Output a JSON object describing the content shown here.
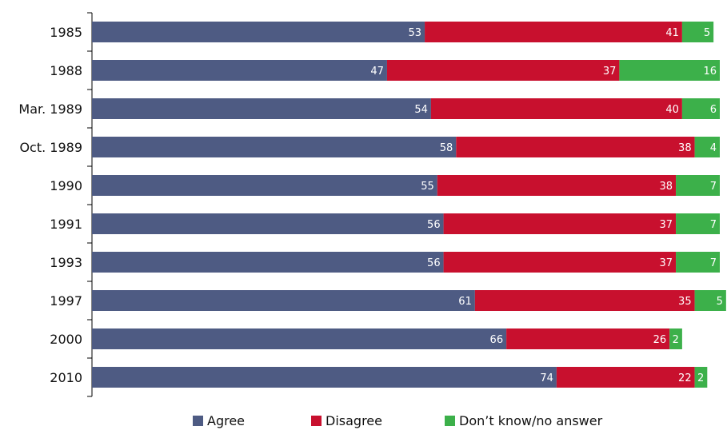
{
  "chart_data": {
    "type": "bar",
    "orientation": "horizontal",
    "stacked": true,
    "categories": [
      "1985",
      "1988",
      "Mar. 1989",
      "Oct. 1989",
      "1990",
      "1991",
      "1993",
      "1997",
      "2000",
      "2010"
    ],
    "series": [
      {
        "name": "Agree",
        "color": "#4e5b83",
        "values": [
          53,
          47,
          54,
          58,
          55,
          56,
          56,
          61,
          66,
          74
        ]
      },
      {
        "name": "Disagree",
        "color": "#c8102e",
        "values": [
          41,
          37,
          40,
          38,
          38,
          37,
          37,
          35,
          26,
          22
        ]
      },
      {
        "name": "Don’t know/no answer",
        "color": "#3cb04a",
        "values": [
          5,
          16,
          6,
          4,
          7,
          7,
          7,
          5,
          2,
          2
        ]
      }
    ],
    "xlim": [
      0,
      100
    ],
    "grid": false,
    "legend_position": "bottom"
  }
}
